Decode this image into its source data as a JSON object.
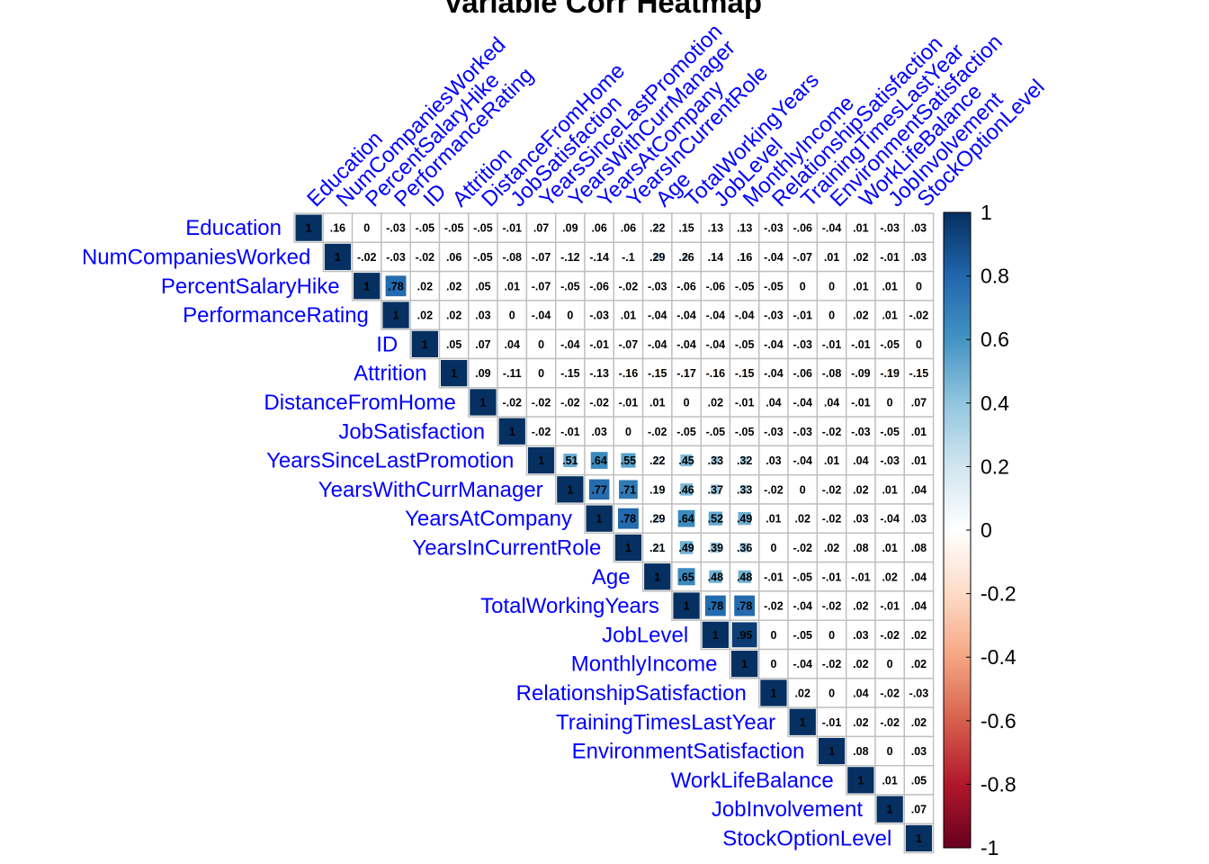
{
  "chart_data": {
    "type": "heatmap",
    "title": "Variable Corr Heatmap",
    "variables": [
      "Education",
      "NumCompaniesWorked",
      "PercentSalaryHike",
      "PerformanceRating",
      "ID",
      "Attrition",
      "DistanceFromHome",
      "JobSatisfaction",
      "YearsSinceLastPromotion",
      "YearsWithCurrManager",
      "YearsAtCompany",
      "YearsInCurrentRole",
      "Age",
      "TotalWorkingYears",
      "JobLevel",
      "MonthlyIncome",
      "RelationshipSatisfaction",
      "TrainingTimesLastYear",
      "EnvironmentSatisfaction",
      "WorkLifeBalance",
      "JobInvolvement",
      "StockOptionLevel"
    ],
    "layout": "upper-triangle",
    "values": [
      [
        1,
        0.16,
        0,
        -0.03,
        -0.05,
        -0.05,
        -0.05,
        -0.01,
        0.07,
        0.09,
        0.06,
        0.06,
        0.22,
        0.15,
        0.13,
        0.13,
        -0.03,
        -0.06,
        -0.04,
        0.01,
        -0.03,
        0.03
      ],
      [
        1,
        -0.02,
        -0.03,
        -0.02,
        0.06,
        -0.05,
        -0.08,
        -0.07,
        -0.12,
        -0.14,
        -0.1,
        0.29,
        0.26,
        0.14,
        0.16,
        -0.04,
        -0.07,
        0.01,
        0.02,
        -0.01,
        0.03
      ],
      [
        1,
        0.78,
        0.02,
        0.02,
        0.05,
        0.01,
        -0.07,
        -0.05,
        -0.06,
        -0.02,
        -0.03,
        -0.06,
        -0.06,
        -0.05,
        -0.05,
        0,
        0,
        0.01,
        0.01,
        0
      ],
      [
        1,
        0.02,
        0.02,
        0.03,
        0,
        -0.04,
        0,
        -0.03,
        0.01,
        -0.04,
        -0.04,
        -0.04,
        -0.04,
        -0.03,
        -0.01,
        0,
        0.02,
        0.01,
        -0.02
      ],
      [
        1,
        0.05,
        0.07,
        0.04,
        0,
        -0.04,
        -0.01,
        -0.07,
        -0.04,
        -0.04,
        -0.04,
        -0.05,
        -0.04,
        -0.03,
        -0.01,
        -0.01,
        -0.05,
        0
      ],
      [
        1,
        0.09,
        -0.11,
        0,
        -0.15,
        -0.13,
        -0.16,
        -0.15,
        -0.17,
        -0.16,
        -0.15,
        -0.04,
        -0.06,
        -0.08,
        -0.09,
        -0.19,
        -0.15
      ],
      [
        1,
        -0.02,
        -0.02,
        -0.02,
        -0.02,
        -0.01,
        0.01,
        0,
        0.02,
        -0.01,
        0.04,
        -0.04,
        0.04,
        -0.01,
        0,
        0.07
      ],
      [
        1,
        -0.02,
        -0.01,
        0.03,
        0,
        -0.02,
        -0.05,
        -0.05,
        -0.05,
        -0.03,
        -0.03,
        -0.02,
        -0.03,
        -0.05,
        0.01
      ],
      [
        1,
        0.51,
        0.64,
        0.55,
        0.22,
        0.45,
        0.33,
        0.32,
        0.03,
        -0.04,
        0.01,
        0.04,
        -0.03,
        0.01
      ],
      [
        1,
        0.77,
        0.71,
        0.19,
        0.46,
        0.37,
        0.33,
        -0.02,
        0,
        -0.02,
        0.02,
        0.01,
        0.04
      ],
      [
        1,
        0.78,
        0.29,
        0.64,
        0.52,
        0.49,
        0.01,
        0.02,
        -0.02,
        0.03,
        -0.04,
        0.03
      ],
      [
        1,
        0.21,
        0.49,
        0.39,
        0.36,
        0,
        -0.02,
        0.02,
        0.08,
        0.01,
        0.08
      ],
      [
        1,
        0.65,
        0.48,
        0.48,
        -0.01,
        -0.05,
        -0.01,
        -0.01,
        0.02,
        0.04
      ],
      [
        1,
        0.78,
        0.78,
        -0.02,
        -0.04,
        -0.02,
        0.02,
        -0.01,
        0.04
      ],
      [
        1,
        0.95,
        0,
        -0.05,
        0,
        0.03,
        -0.02,
        0.02
      ],
      [
        1,
        0,
        -0.04,
        -0.02,
        0.02,
        0,
        0.02
      ],
      [
        1,
        0.02,
        0,
        0.04,
        -0.02,
        -0.03
      ],
      [
        1,
        -0.01,
        0.02,
        -0.02,
        0.02
      ],
      [
        1,
        0.08,
        0,
        0.03
      ],
      [
        1,
        0.01,
        0.05
      ],
      [
        1,
        0.07
      ],
      [
        1
      ]
    ],
    "color_scale": {
      "min": -1,
      "max": 1,
      "ticks": [
        "1",
        "0.8",
        "0.6",
        "0.4",
        "0.2",
        "0",
        "-0.2",
        "-0.4",
        "-0.6",
        "-0.8",
        "-1"
      ],
      "stops": [
        "#67001F",
        "#B2182B",
        "#D6604D",
        "#F4A582",
        "#FDDBC7",
        "#FFFFFF",
        "#D1E5F0",
        "#92C5DE",
        "#4393C3",
        "#2166AC",
        "#053061"
      ]
    },
    "label_color": "#0000FF",
    "legend_position": "right"
  }
}
